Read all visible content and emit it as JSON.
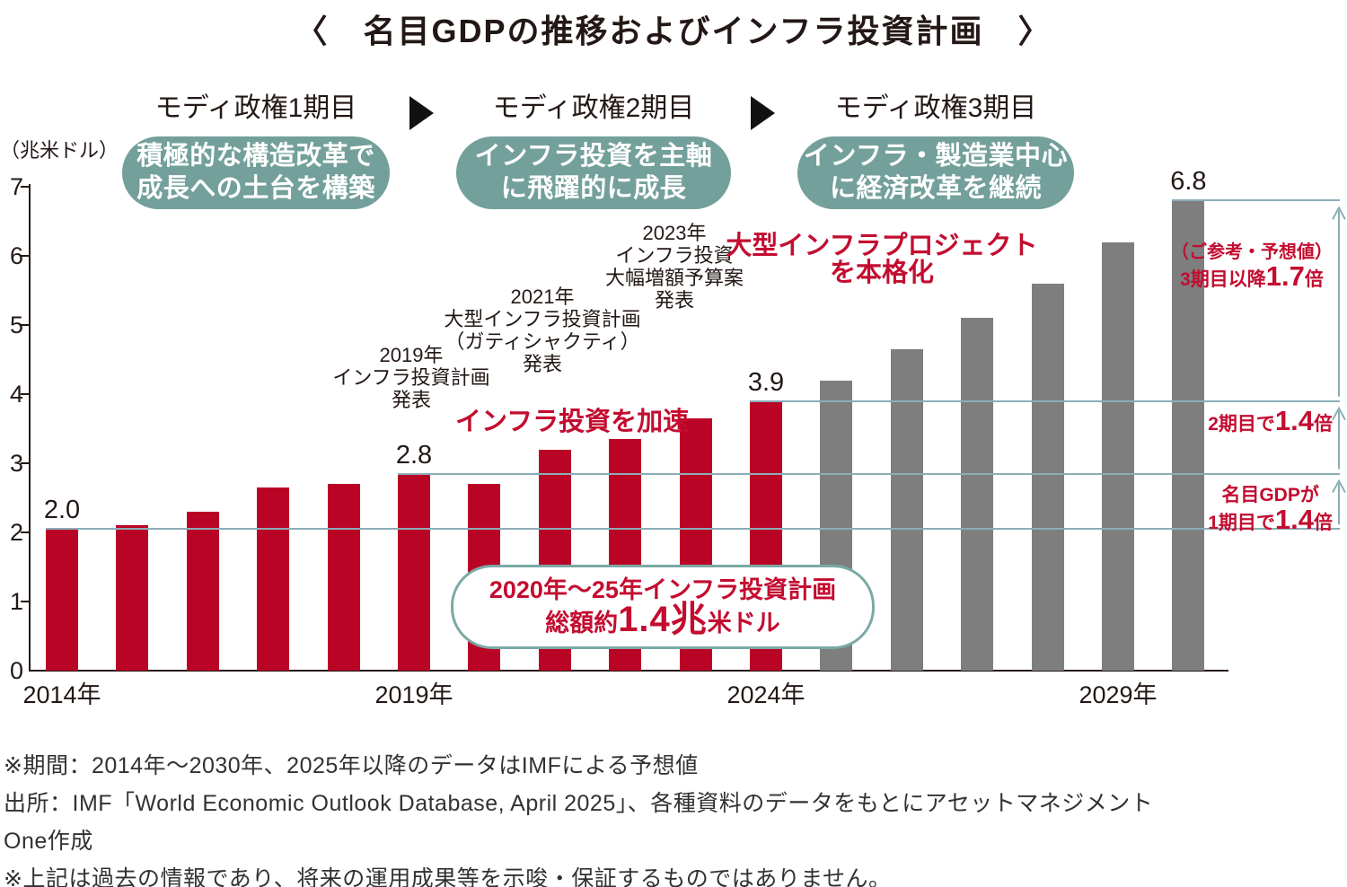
{
  "title": "〈　名目GDPの推移およびインフラ投資計画　〉",
  "colors": {
    "actual_bar": "#ba0426",
    "forecast_bar": "#7e7e7e",
    "accent_red": "#c30d30",
    "pill_teal": "#73a09a",
    "reference_line": "#8badb8",
    "ink": "#231815"
  },
  "periods": [
    {
      "label": "モディ政権1期目",
      "pill_lines": [
        "積極的な構造改革で",
        "成長への土台を構築"
      ]
    },
    {
      "label": "モディ政権2期目",
      "pill_lines": [
        "インフラ投資を主軸",
        "に飛躍的に成長"
      ]
    },
    {
      "label": "モディ政権3期目",
      "pill_lines": [
        "インフラ・製造業中心",
        "に経済改革を継続"
      ]
    }
  ],
  "chart_data": {
    "type": "bar",
    "title": "名目GDPの推移およびインフラ投資計画",
    "unit_label": "（兆米ドル）",
    "xlabel": "年",
    "ylabel": "名目GDP（兆米ドル）",
    "ylim": [
      0,
      7
    ],
    "yticks": [
      0,
      1,
      2,
      3,
      4,
      5,
      6,
      7
    ],
    "grid": false,
    "legend": false,
    "categories": [
      2014,
      2015,
      2016,
      2017,
      2018,
      2019,
      2020,
      2021,
      2022,
      2023,
      2024,
      2025,
      2026,
      2027,
      2028,
      2029,
      2030
    ],
    "values": [
      2.05,
      2.1,
      2.3,
      2.65,
      2.7,
      2.85,
      2.7,
      3.2,
      3.35,
      3.65,
      3.9,
      4.2,
      4.65,
      5.1,
      5.6,
      6.2,
      6.8
    ],
    "segments": [
      {
        "from": 2014,
        "to": 2024,
        "color": "#ba0426"
      },
      {
        "from": 2025,
        "to": 2030,
        "color": "#7e7e7e"
      }
    ],
    "x_axis_labels": [
      {
        "year": 2014,
        "label": "2014年"
      },
      {
        "year": 2019,
        "label": "2019年"
      },
      {
        "year": 2024,
        "label": "2024年"
      },
      {
        "year": 2029,
        "label": "2029年"
      }
    ],
    "value_labels": [
      {
        "year": 2014,
        "label": "2.0"
      },
      {
        "year": 2019,
        "label": "2.8"
      },
      {
        "year": 2024,
        "label": "3.9"
      },
      {
        "year": 2030,
        "label": "6.8"
      }
    ],
    "reference_lines": [
      {
        "value": 2.0,
        "from_year": 2014
      },
      {
        "value": 2.8,
        "from_year": 2019
      },
      {
        "value": 3.9,
        "from_year": 2024
      },
      {
        "value": 6.8,
        "from_year": 2030
      }
    ]
  },
  "annotations": {
    "plan_2019": {
      "lines": [
        "2019年",
        "インフラ投資計画",
        "発表"
      ]
    },
    "plan_2021": {
      "lines": [
        "2021年",
        "大型インフラ投資計画",
        "（ガティシャクティ）",
        "発表"
      ]
    },
    "plan_2023": {
      "lines": [
        "2023年",
        "インフラ投資",
        "大幅増額予算案",
        "発表"
      ]
    },
    "accelerate": "インフラ投資を加速",
    "mega_project": {
      "lines": [
        "大型インフラプロジェクト",
        "を本格化"
      ]
    }
  },
  "callout": {
    "line1": "2020年～25年インフラ投資計画",
    "line2_pre": "総額約",
    "line2_big": "1.4兆",
    "line2_post": "米ドル"
  },
  "side_notes": [
    {
      "name": "third-term",
      "lines": [
        {
          "text": "（ご参考・予想値）"
        },
        {
          "pre": "3期目以降",
          "big": "1.7",
          "post": "倍"
        }
      ],
      "span_years": [
        2024,
        2030
      ]
    },
    {
      "name": "second-term",
      "lines": [
        {
          "pre": "2期目で",
          "big": "1.4",
          "post": "倍"
        }
      ],
      "span_years": [
        2019,
        2024
      ]
    },
    {
      "name": "first-term",
      "lines": [
        {
          "text": "名目GDPが"
        },
        {
          "pre": "1期目で",
          "big": "1.4",
          "post": "倍"
        }
      ],
      "span_years": [
        2014,
        2019
      ]
    }
  ],
  "footnotes": [
    "※期間：2014年～2030年、2025年以降のデータはIMFによる予想値",
    "出所：IMF「World Economic Outlook Database, April 2025」、各種資料のデータをもとにアセットマネジメント",
    "One作成",
    "※上記は過去の情報であり、将来の運用成果等を示唆・保証するものではありません。"
  ]
}
